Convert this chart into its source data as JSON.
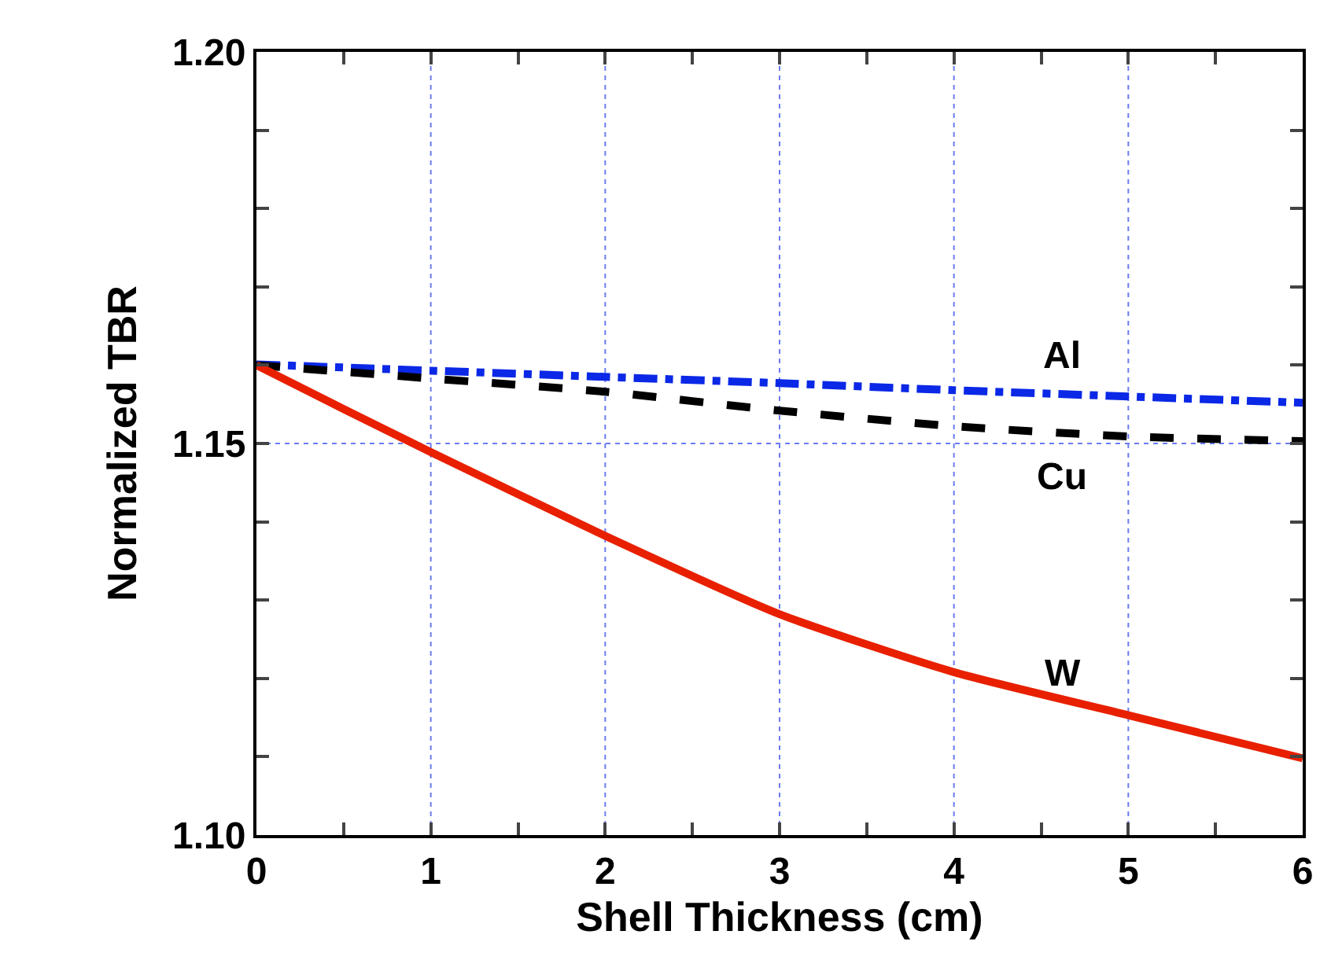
{
  "chart_data": {
    "type": "line",
    "xlabel": "Shell Thickness (cm)",
    "ylabel": "Normalized TBR",
    "xlim": [
      0,
      6
    ],
    "ylim": [
      1.1,
      1.2
    ],
    "xticks": [
      0,
      {
        "value": 0.5,
        "label": null
      },
      1,
      {
        "value": 1.5,
        "label": null
      },
      2,
      {
        "value": 2.5,
        "label": null
      },
      3,
      {
        "value": 3.5,
        "label": null
      },
      4,
      {
        "value": 4.5,
        "label": null
      },
      5,
      {
        "value": 5.5,
        "label": null
      },
      6
    ],
    "yticks": [
      {
        "value": 1.1,
        "label": "1.10"
      },
      {
        "value": 1.11,
        "label": null
      },
      {
        "value": 1.12,
        "label": null
      },
      {
        "value": 1.13,
        "label": null
      },
      {
        "value": 1.14,
        "label": null
      },
      {
        "value": 1.15,
        "label": "1.15"
      },
      {
        "value": 1.16,
        "label": null
      },
      {
        "value": 1.17,
        "label": null
      },
      {
        "value": 1.18,
        "label": null
      },
      {
        "value": 1.19,
        "label": null
      },
      {
        "value": 1.2,
        "label": "1.20"
      }
    ],
    "grid": true,
    "legend": false,
    "series": [
      {
        "name": "Al",
        "color": "#0a28e6",
        "line_style": "dashdot",
        "x": [
          0,
          1,
          2,
          3,
          4,
          5,
          6
        ],
        "values": [
          1.1601,
          1.1593,
          1.1585,
          1.1577,
          1.1568,
          1.156,
          1.1552
        ]
      },
      {
        "name": "Cu",
        "color": "#000000",
        "line_style": "dashed",
        "x": [
          0,
          1,
          2,
          3,
          4,
          5,
          6
        ],
        "values": [
          1.16,
          1.1583,
          1.1566,
          1.1542,
          1.1522,
          1.1509,
          1.1503
        ]
      },
      {
        "name": "W",
        "color": "#e82000",
        "line_style": "solid",
        "x": [
          0,
          0.5,
          1,
          2,
          3,
          4,
          5,
          6
        ],
        "values": [
          1.16,
          1.1544,
          1.1489,
          1.1382,
          1.1282,
          1.1208,
          1.1153,
          1.1098
        ]
      }
    ]
  }
}
